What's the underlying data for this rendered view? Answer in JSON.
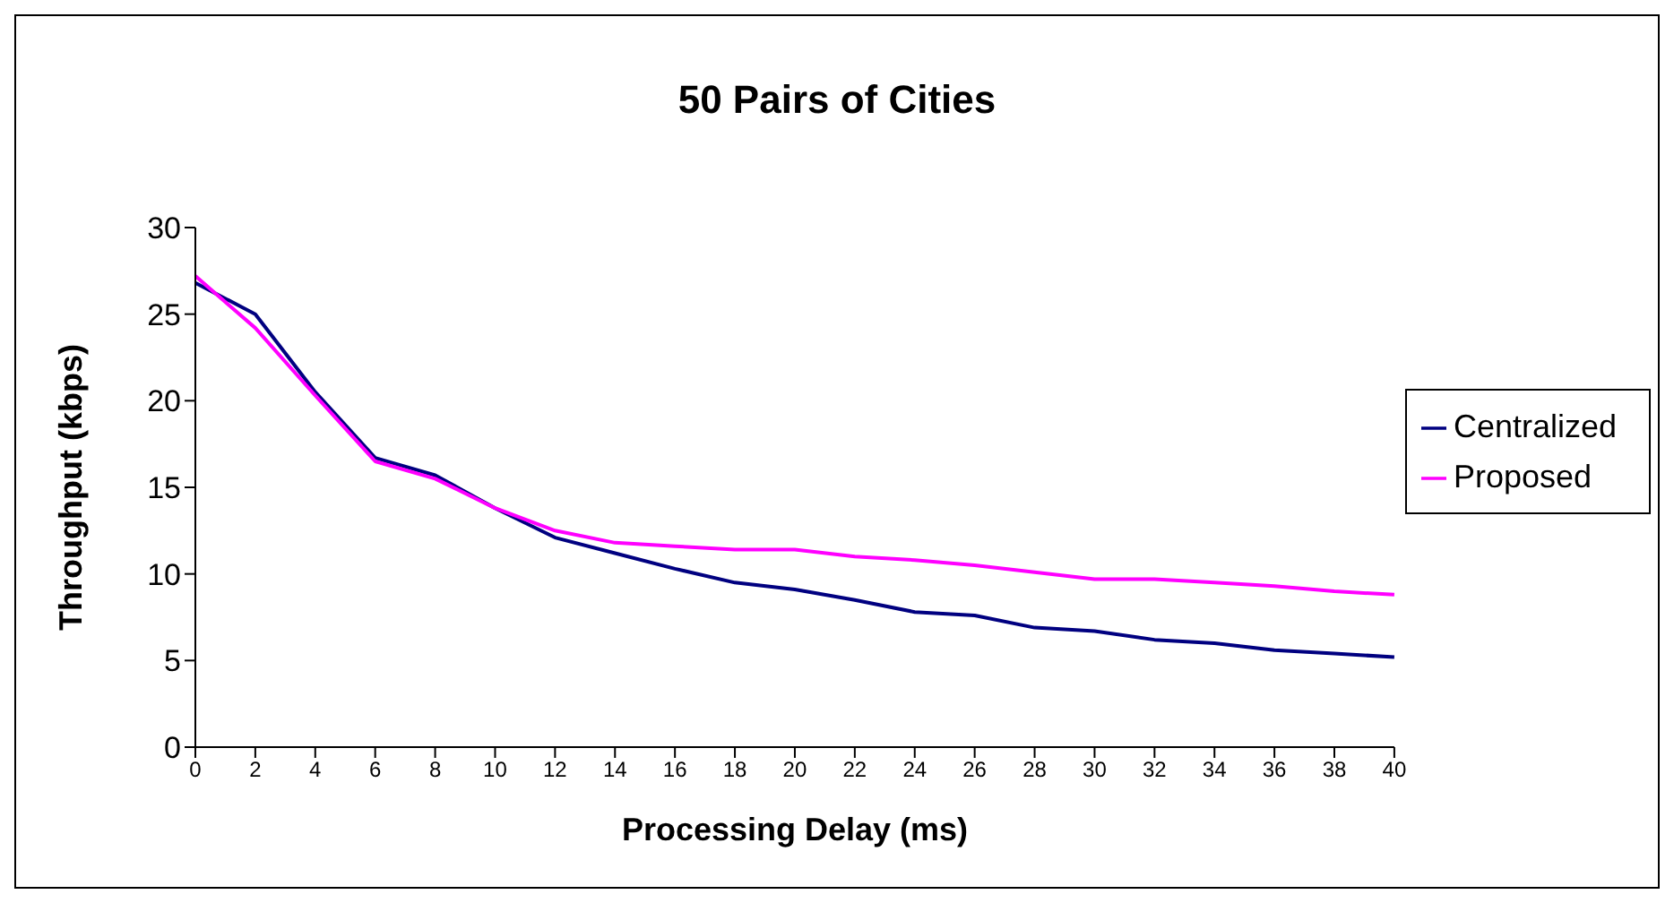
{
  "chart_data": {
    "type": "line",
    "title": "50 Pairs of Cities",
    "xlabel": "Processing Delay (ms)",
    "ylabel": "Throughput (kbps)",
    "x": [
      0,
      2,
      4,
      6,
      8,
      10,
      12,
      14,
      16,
      18,
      20,
      22,
      24,
      26,
      28,
      30,
      32,
      34,
      36,
      38,
      40
    ],
    "series": [
      {
        "name": "Centralized",
        "color": "#000080",
        "values": [
          26.8,
          25,
          20.5,
          16.7,
          15.7,
          13.8,
          12.1,
          11.2,
          10.3,
          9.5,
          9.1,
          8.5,
          7.8,
          7.6,
          6.9,
          6.7,
          6.2,
          6.0,
          5.6,
          5.4,
          5.2
        ]
      },
      {
        "name": "Proposed",
        "color": "#ff00ff",
        "values": [
          27.2,
          24.2,
          20.3,
          16.5,
          15.5,
          13.8,
          12.5,
          11.8,
          11.6,
          11.4,
          11.4,
          11.0,
          10.8,
          10.5,
          10.1,
          9.7,
          9.7,
          9.5,
          9.3,
          9.0,
          8.8
        ]
      }
    ],
    "xlim": [
      0,
      40
    ],
    "xticks": [
      0,
      2,
      4,
      6,
      8,
      10,
      12,
      14,
      16,
      18,
      20,
      22,
      24,
      26,
      28,
      30,
      32,
      34,
      36,
      38,
      40
    ],
    "ylim": [
      0,
      30
    ],
    "yticks": [
      0,
      5,
      10,
      15,
      20,
      25,
      30
    ],
    "grid": false,
    "legend": "right",
    "marker": "none",
    "line_style": "solid"
  }
}
